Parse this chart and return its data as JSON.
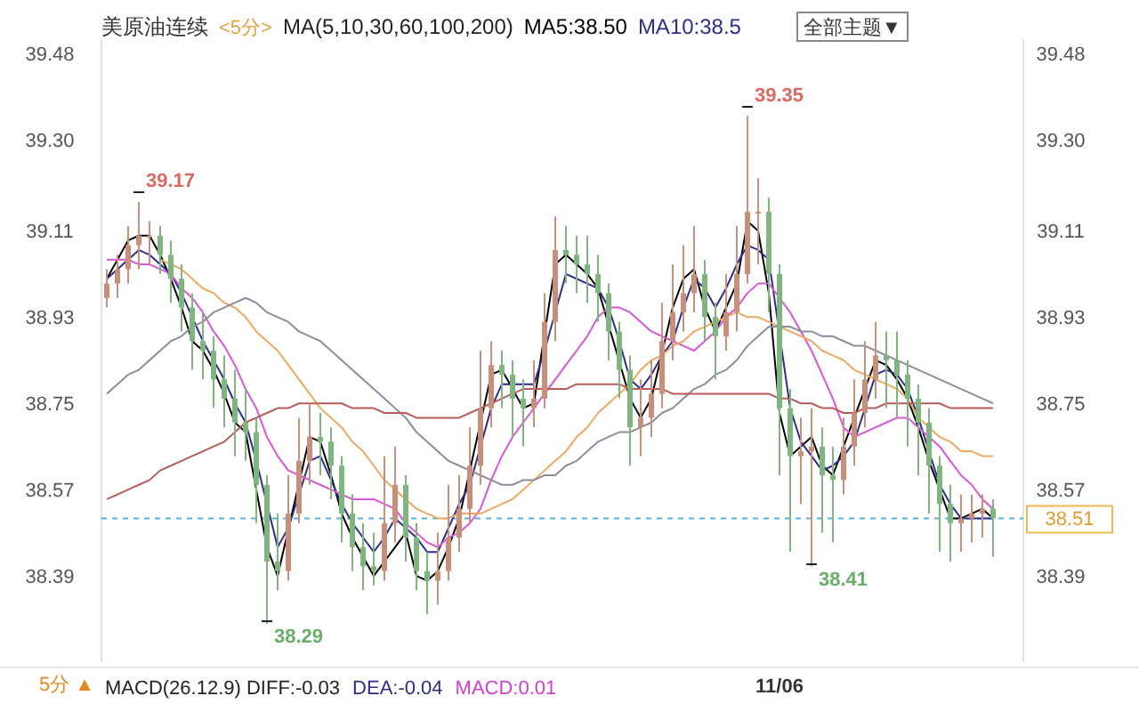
{
  "chart_data": {
    "type": "candlestick",
    "title": "美原油连续",
    "subtitle": "<5分>",
    "legend_title": "MA(5,10,30,60,100,200)",
    "categories": [
      null,
      null,
      null,
      null,
      null,
      null,
      null,
      null,
      null,
      null,
      null,
      null,
      null,
      null,
      null,
      null,
      null,
      null,
      null,
      null,
      null,
      null,
      null,
      null,
      null,
      null,
      null,
      null,
      null,
      null,
      null,
      null,
      null,
      null,
      null,
      null,
      null,
      null,
      null,
      null,
      null,
      null,
      null,
      null,
      null,
      null,
      null,
      null,
      null,
      null,
      null,
      null,
      null,
      null,
      null,
      null,
      null,
      null,
      null,
      null,
      null,
      null,
      null,
      "11/06",
      null,
      null,
      null,
      null,
      null,
      null,
      null,
      null,
      null,
      null,
      null,
      null,
      null,
      null,
      null,
      null,
      null,
      null,
      null,
      null
    ],
    "ohlc": [
      [
        38.97,
        39.03,
        38.95,
        39.0
      ],
      [
        39.0,
        39.06,
        38.97,
        39.03
      ],
      [
        39.03,
        39.12,
        39.0,
        39.08
      ],
      [
        39.08,
        39.17,
        39.03,
        39.1
      ],
      [
        39.1,
        39.13,
        39.04,
        39.1
      ],
      [
        39.1,
        39.12,
        39.02,
        39.06
      ],
      [
        39.06,
        39.09,
        38.96,
        39.01
      ],
      [
        39.01,
        39.04,
        38.9,
        38.95
      ],
      [
        38.95,
        38.98,
        38.82,
        38.88
      ],
      [
        38.88,
        38.94,
        38.8,
        38.86
      ],
      [
        38.86,
        38.89,
        38.74,
        38.8
      ],
      [
        38.8,
        38.85,
        38.7,
        38.76
      ],
      [
        38.76,
        38.82,
        38.64,
        38.71
      ],
      [
        38.71,
        38.78,
        38.63,
        38.69
      ],
      [
        38.69,
        38.72,
        38.5,
        38.58
      ],
      [
        38.58,
        38.6,
        38.29,
        38.42
      ],
      [
        38.42,
        38.52,
        38.36,
        38.4
      ],
      [
        38.4,
        38.6,
        38.38,
        38.52
      ],
      [
        38.52,
        38.72,
        38.5,
        38.63
      ],
      [
        38.63,
        38.75,
        38.58,
        38.68
      ],
      [
        38.68,
        38.73,
        38.6,
        38.67
      ],
      [
        38.67,
        38.7,
        38.55,
        38.62
      ],
      [
        38.62,
        38.64,
        38.46,
        38.52
      ],
      [
        38.52,
        38.56,
        38.4,
        38.45
      ],
      [
        38.45,
        38.5,
        38.36,
        38.41
      ],
      [
        38.41,
        38.48,
        38.37,
        38.4
      ],
      [
        38.4,
        38.64,
        38.38,
        38.5
      ],
      [
        38.5,
        38.66,
        38.46,
        38.58
      ],
      [
        38.58,
        38.6,
        38.42,
        38.47
      ],
      [
        38.47,
        38.5,
        38.36,
        38.4
      ],
      [
        38.4,
        38.44,
        38.31,
        38.38
      ],
      [
        38.38,
        38.48,
        38.33,
        38.4
      ],
      [
        38.4,
        38.58,
        38.38,
        38.47
      ],
      [
        38.47,
        38.6,
        38.44,
        38.53
      ],
      [
        38.53,
        38.7,
        38.5,
        38.62
      ],
      [
        38.62,
        38.86,
        38.58,
        38.74
      ],
      [
        38.74,
        38.88,
        38.7,
        38.83
      ],
      [
        38.83,
        38.86,
        38.74,
        38.81
      ],
      [
        38.81,
        38.84,
        38.68,
        38.76
      ],
      [
        38.76,
        38.8,
        38.66,
        38.74
      ],
      [
        38.74,
        38.84,
        38.7,
        38.76
      ],
      [
        38.76,
        38.98,
        38.74,
        38.92
      ],
      [
        38.92,
        39.14,
        38.88,
        39.07
      ],
      [
        39.07,
        39.12,
        39.0,
        39.06
      ],
      [
        39.06,
        39.1,
        38.98,
        39.04
      ],
      [
        39.04,
        39.1,
        38.96,
        39.02
      ],
      [
        39.02,
        39.06,
        38.92,
        38.98
      ],
      [
        38.98,
        39.0,
        38.84,
        38.9
      ],
      [
        38.9,
        38.92,
        38.76,
        38.82
      ],
      [
        38.82,
        38.85,
        38.62,
        38.7
      ],
      [
        38.7,
        38.8,
        38.64,
        38.72
      ],
      [
        38.72,
        38.84,
        38.68,
        38.77
      ],
      [
        38.77,
        38.96,
        38.74,
        38.88
      ],
      [
        38.88,
        39.04,
        38.84,
        38.94
      ],
      [
        38.94,
        39.08,
        38.9,
        38.98
      ],
      [
        38.98,
        39.12,
        38.94,
        39.02
      ],
      [
        39.02,
        39.05,
        38.88,
        38.93
      ],
      [
        38.93,
        38.96,
        38.8,
        38.89
      ],
      [
        38.89,
        39.02,
        38.86,
        38.94
      ],
      [
        38.94,
        39.12,
        38.9,
        39.02
      ],
      [
        39.02,
        39.35,
        39.0,
        39.15
      ],
      [
        39.15,
        39.22,
        39.04,
        39.15
      ],
      [
        39.15,
        39.18,
        38.94,
        39.02
      ],
      [
        39.02,
        39.04,
        38.6,
        38.74
      ],
      [
        38.74,
        38.78,
        38.44,
        38.64
      ],
      [
        38.64,
        38.72,
        38.54,
        38.65
      ],
      [
        38.65,
        38.74,
        38.41,
        38.66
      ],
      [
        38.66,
        38.7,
        38.48,
        38.6
      ],
      [
        38.6,
        38.66,
        38.46,
        38.59
      ],
      [
        38.59,
        38.72,
        38.56,
        38.66
      ],
      [
        38.66,
        38.8,
        38.62,
        38.73
      ],
      [
        38.73,
        38.88,
        38.7,
        38.8
      ],
      [
        38.8,
        38.92,
        38.76,
        38.85
      ],
      [
        38.85,
        38.9,
        38.74,
        38.84
      ],
      [
        38.84,
        38.9,
        38.72,
        38.81
      ],
      [
        38.81,
        38.84,
        38.66,
        38.76
      ],
      [
        38.76,
        38.79,
        38.6,
        38.71
      ],
      [
        38.71,
        38.74,
        38.52,
        38.62
      ],
      [
        38.62,
        38.64,
        38.44,
        38.54
      ],
      [
        38.54,
        38.58,
        38.42,
        38.5
      ],
      [
        38.5,
        38.56,
        38.44,
        38.51
      ],
      [
        38.51,
        38.56,
        38.46,
        38.52
      ],
      [
        38.52,
        38.56,
        38.47,
        38.53
      ],
      [
        38.53,
        38.55,
        38.43,
        38.51
      ]
    ],
    "colors": [
      "#c8907a",
      "#c8907a",
      "#c8907a",
      "#c8907a",
      "#c8907a",
      "#7fb57f",
      "#7fb57f",
      "#7fb57f",
      "#7fb57f",
      "#7fb57f",
      "#7fb57f",
      "#7fb57f",
      "#7fb57f",
      "#7fb57f",
      "#7fb57f",
      "#7fb57f",
      "#7fb57f",
      "#c8907a",
      "#c8907a",
      "#c8907a",
      "#7fb57f",
      "#7fb57f",
      "#7fb57f",
      "#7fb57f",
      "#7fb57f",
      "#7fb57f",
      "#c8907a",
      "#c8907a",
      "#7fb57f",
      "#7fb57f",
      "#7fb57f",
      "#c8907a",
      "#c8907a",
      "#c8907a",
      "#c8907a",
      "#c8907a",
      "#c8907a",
      "#7fb57f",
      "#7fb57f",
      "#7fb57f",
      "#c8907a",
      "#c8907a",
      "#c8907a",
      "#7fb57f",
      "#7fb57f",
      "#7fb57f",
      "#7fb57f",
      "#7fb57f",
      "#7fb57f",
      "#7fb57f",
      "#c8907a",
      "#c8907a",
      "#c8907a",
      "#c8907a",
      "#c8907a",
      "#c8907a",
      "#7fb57f",
      "#7fb57f",
      "#c8907a",
      "#c8907a",
      "#c8907a",
      "#c8907a",
      "#7fb57f",
      "#7fb57f",
      "#7fb57f",
      "#c8907a",
      "#c8907a",
      "#7fb57f",
      "#7fb57f",
      "#c8907a",
      "#c8907a",
      "#c8907a",
      "#c8907a",
      "#7fb57f",
      "#7fb57f",
      "#7fb57f",
      "#7fb57f",
      "#7fb57f",
      "#7fb57f",
      "#7fb57f",
      "#c8907a",
      "#c8907a",
      "#c8907a",
      "#7fb57f"
    ],
    "series": [
      {
        "type": "line",
        "name": "MA5:38.50",
        "color": "#000000",
        "values": [
          39.01,
          39.05,
          39.09,
          39.1,
          39.1,
          39.06,
          39.01,
          38.95,
          38.88,
          38.86,
          38.82,
          38.77,
          38.71,
          38.69,
          38.57,
          38.45,
          38.39,
          null,
          null,
          38.68,
          38.67,
          38.6,
          38.52,
          38.47,
          38.43,
          38.39,
          null,
          null,
          38.48,
          38.39,
          38.38,
          38.4,
          38.45,
          38.51,
          null,
          null,
          38.81,
          38.82,
          38.78,
          38.74,
          38.75,
          null,
          39.04,
          39.06,
          39.04,
          39.02,
          38.99,
          null,
          null,
          38.76,
          38.72,
          38.76,
          null,
          38.95,
          39.01,
          39.03,
          38.95,
          38.9,
          38.95,
          39.0,
          39.13,
          39.11,
          38.98,
          38.73,
          38.64,
          38.66,
          38.68,
          38.62,
          38.6,
          38.66,
          38.72,
          38.78,
          38.84,
          38.83,
          38.8,
          38.76,
          38.7,
          38.63,
          38.57,
          38.51,
          38.51,
          38.52,
          38.53,
          38.51
        ]
      },
      {
        "type": "line",
        "name": "MA10:38.5",
        "color": "#2e2e8a",
        "values": [
          39.01,
          39.03,
          39.05,
          39.07,
          39.06,
          39.04,
          39.02,
          38.98,
          38.93,
          38.88,
          38.84,
          38.8,
          38.75,
          38.71,
          38.63,
          null,
          38.45,
          38.49,
          38.56,
          38.63,
          38.64,
          38.59,
          38.54,
          38.5,
          38.47,
          38.44,
          38.47,
          38.51,
          38.49,
          38.47,
          38.44,
          38.44,
          38.49,
          38.54,
          38.58,
          null,
          38.74,
          38.79,
          38.79,
          38.79,
          38.79,
          38.86,
          null,
          39.02,
          39.01,
          39.0,
          38.99,
          38.95,
          38.88,
          38.8,
          38.78,
          38.81,
          38.85,
          38.88,
          38.95,
          39.01,
          38.99,
          38.95,
          38.99,
          39.04,
          39.08,
          39.07,
          39.05,
          null,
          38.74,
          38.67,
          38.64,
          38.61,
          38.62,
          38.64,
          38.67,
          38.74,
          38.81,
          38.82,
          38.81,
          38.78,
          38.72,
          38.65,
          38.58,
          38.54,
          38.51,
          38.51,
          38.51,
          38.51
        ]
      },
      {
        "type": "line",
        "color": "#d955d9",
        "values": [
          39.05,
          39.05,
          39.05,
          39.04,
          39.04,
          39.03,
          39.02,
          38.99,
          38.97,
          38.94,
          38.9,
          38.87,
          38.83,
          38.78,
          38.74,
          38.68,
          38.64,
          38.61,
          38.6,
          38.59,
          38.58,
          38.57,
          38.56,
          38.55,
          38.55,
          38.55,
          38.54,
          38.53,
          38.5,
          38.48,
          38.46,
          38.45,
          38.47,
          38.48,
          38.5,
          38.53,
          38.59,
          38.64,
          38.68,
          38.71,
          38.74,
          38.77,
          38.8,
          38.83,
          38.86,
          38.89,
          38.93,
          38.95,
          38.95,
          38.94,
          38.92,
          38.9,
          38.89,
          38.88,
          38.87,
          38.86,
          38.88,
          38.9,
          38.93,
          38.95,
          38.98,
          39.0,
          39.0,
          38.97,
          38.94,
          38.9,
          38.86,
          38.81,
          38.76,
          38.7,
          38.68,
          38.69,
          38.7,
          38.71,
          38.72,
          38.72,
          38.7,
          38.68,
          38.66,
          38.63,
          38.6,
          38.58,
          38.55,
          38.53
        ]
      },
      {
        "type": "line",
        "color": "#f0a860",
        "values": [
          null,
          null,
          null,
          null,
          null,
          39.05,
          39.04,
          39.03,
          39.01,
          38.99,
          38.98,
          38.96,
          38.95,
          38.93,
          38.9,
          38.88,
          38.86,
          38.83,
          38.8,
          38.77,
          38.74,
          38.72,
          38.7,
          38.67,
          38.65,
          38.62,
          38.59,
          38.57,
          38.55,
          38.53,
          38.52,
          38.51,
          38.51,
          38.52,
          38.52,
          38.52,
          38.53,
          38.54,
          38.55,
          38.57,
          38.59,
          38.61,
          38.63,
          38.65,
          38.68,
          38.7,
          38.73,
          38.75,
          38.77,
          38.79,
          38.82,
          38.84,
          38.85,
          38.87,
          38.88,
          38.9,
          38.91,
          38.92,
          38.93,
          38.94,
          38.93,
          38.93,
          38.92,
          38.91,
          38.9,
          38.89,
          38.88,
          38.86,
          38.85,
          38.84,
          38.82,
          38.81,
          38.8,
          38.79,
          38.78,
          38.76,
          38.72,
          38.7,
          38.68,
          38.67,
          38.65,
          38.65,
          38.64,
          38.64
        ]
      },
      {
        "type": "line",
        "color": "#8c8c9c",
        "values": [
          38.77,
          38.79,
          38.81,
          38.82,
          38.84,
          38.86,
          38.88,
          38.89,
          38.91,
          38.92,
          38.94,
          38.95,
          38.96,
          38.97,
          38.96,
          38.94,
          38.93,
          38.92,
          38.9,
          38.89,
          38.88,
          38.86,
          38.84,
          38.82,
          38.8,
          38.78,
          38.76,
          38.74,
          38.72,
          38.69,
          38.67,
          38.65,
          38.63,
          38.62,
          38.61,
          38.6,
          38.59,
          38.58,
          38.58,
          38.59,
          38.59,
          38.6,
          38.6,
          38.62,
          38.63,
          38.65,
          38.67,
          38.68,
          38.69,
          38.69,
          38.7,
          38.71,
          38.73,
          38.74,
          38.76,
          38.78,
          38.79,
          38.81,
          38.82,
          38.84,
          38.87,
          38.89,
          38.91,
          38.91,
          38.91,
          38.9,
          38.9,
          38.89,
          38.89,
          38.88,
          38.87,
          38.87,
          38.86,
          38.85,
          38.84,
          38.83,
          38.82,
          38.81,
          38.8,
          38.79,
          38.78,
          38.77,
          38.76,
          38.75
        ]
      },
      {
        "type": "line",
        "color": "#b85a5a",
        "values": [
          38.55,
          38.56,
          38.57,
          38.58,
          38.59,
          38.61,
          38.62,
          38.63,
          38.64,
          38.65,
          38.66,
          38.67,
          38.69,
          38.71,
          38.72,
          38.73,
          38.74,
          38.74,
          38.75,
          38.75,
          38.75,
          38.75,
          38.75,
          38.74,
          38.74,
          38.74,
          38.73,
          38.73,
          38.73,
          38.72,
          38.72,
          38.72,
          38.72,
          38.72,
          38.73,
          38.74,
          38.75,
          38.76,
          38.77,
          38.78,
          38.78,
          38.78,
          38.78,
          38.78,
          38.79,
          38.79,
          38.79,
          38.79,
          38.79,
          38.78,
          38.78,
          38.78,
          38.78,
          38.77,
          38.77,
          38.77,
          38.77,
          38.77,
          38.77,
          38.77,
          38.77,
          38.77,
          38.77,
          38.76,
          38.76,
          38.75,
          38.75,
          38.74,
          38.74,
          38.73,
          38.73,
          38.74,
          38.74,
          38.75,
          38.75,
          38.75,
          38.75,
          38.75,
          38.75,
          38.74,
          38.74,
          38.74,
          38.74,
          38.74
        ]
      }
    ],
    "ylim": [
      38.21,
      39.51
    ],
    "y2lim": [
      38.21,
      39.51
    ],
    "yticks": [
      {
        "value": 38.39,
        "label": "38.39"
      },
      {
        "value": 38.57,
        "label": "38.57"
      },
      {
        "value": 38.75,
        "label": "38.75"
      },
      {
        "value": 38.93,
        "label": "38.93"
      },
      {
        "value": 39.11,
        "label": "39.11"
      },
      {
        "value": 39.3,
        "label": "39.30"
      },
      {
        "value": 39.48,
        "label": "39.48"
      }
    ],
    "y2ticks": [
      {
        "value": 38.39,
        "label": "38.39"
      },
      {
        "value": 38.57,
        "label": "38.57"
      },
      {
        "value": 38.75,
        "label": "38.75"
      },
      {
        "value": 38.93,
        "label": "38.93"
      },
      {
        "value": 39.11,
        "label": "39.11"
      },
      {
        "value": 39.3,
        "label": "39.30"
      },
      {
        "value": 39.48,
        "label": "39.48"
      }
    ],
    "ref_lines": [
      {
        "axis": "y",
        "value": 38.51,
        "label": "38.51",
        "color": "#5bb0d8",
        "line_style": "dashed"
      }
    ],
    "annotations": [
      "全部主题▼",
      "5分 ▲",
      "MACD(26.12.9) DIFF:-0.03",
      "DEA:-0.04",
      "MACD:0.01",
      "39.17",
      "38.29",
      "39.35",
      "38.41"
    ]
  }
}
